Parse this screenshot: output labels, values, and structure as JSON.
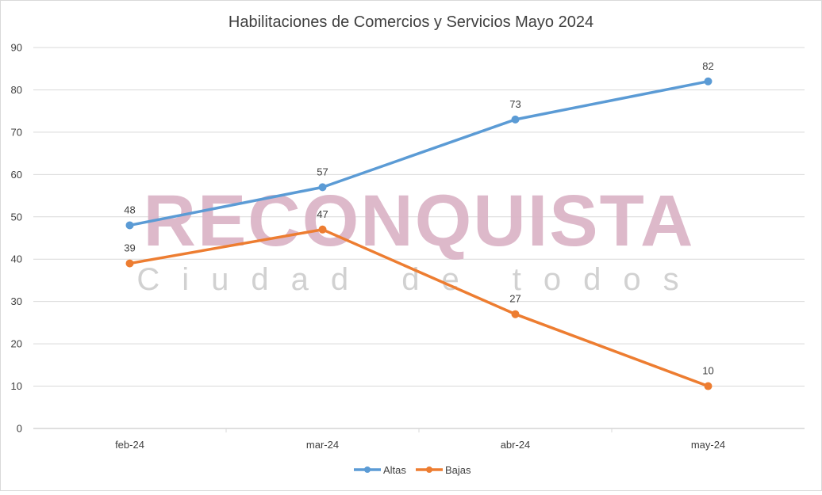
{
  "chart_data": {
    "type": "line",
    "title": "Habilitaciones de Comercios y Servicios Mayo 2024",
    "categories": [
      "feb-24",
      "mar-24",
      "abr-24",
      "may-24"
    ],
    "series": [
      {
        "name": "Altas",
        "values": [
          48,
          57,
          73,
          82
        ],
        "color": "#5b9bd5"
      },
      {
        "name": "Bajas",
        "values": [
          39,
          47,
          27,
          10
        ],
        "color": "#ed7d31"
      }
    ],
    "ylim": [
      0,
      90
    ],
    "yticks": [
      0,
      10,
      20,
      30,
      40,
      50,
      60,
      70,
      80,
      90
    ],
    "grid": true,
    "legend_position": "bottom",
    "data_labels": true
  },
  "watermark": {
    "main": "RECONQUISTA",
    "sub": "Ciudad de todos"
  }
}
